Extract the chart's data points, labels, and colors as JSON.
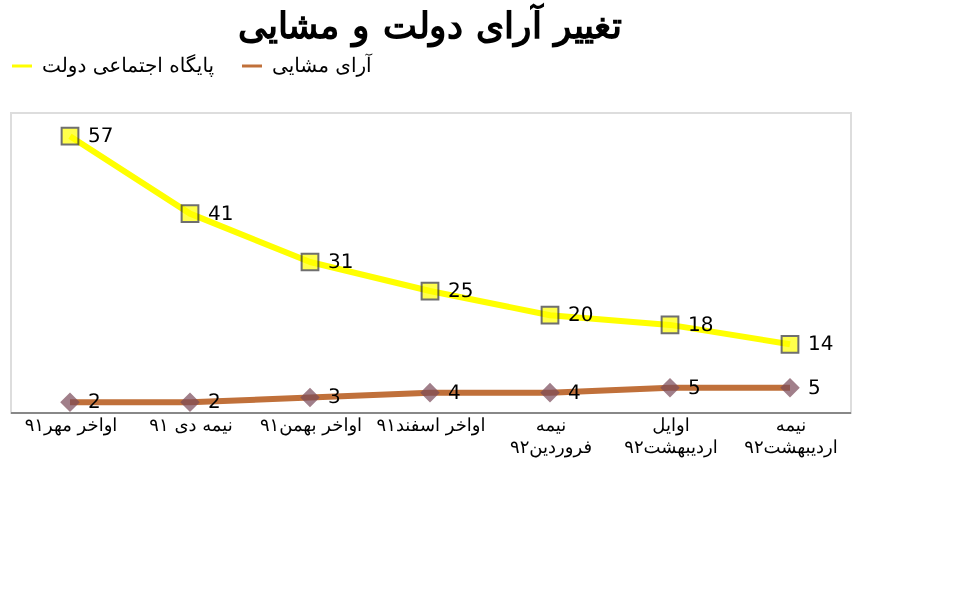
{
  "chart_data": {
    "type": "line",
    "title": "تغییر آرای دولت و مشایی",
    "categories": [
      "اواخر مهر۹۱",
      "نیمه دی ۹۱",
      "اواخر بهمن۹۱",
      "اواخر اسفند۹۱",
      "نیمه فروردین۹۲",
      "اوایل اردیبهشت۹۲",
      "نیمه اردیبهشت۹۲"
    ],
    "series": [
      {
        "name": "پایگاه اجتماعی دولت",
        "color": "#ffff00",
        "marker": "square",
        "values": [
          57,
          41,
          31,
          25,
          20,
          18,
          14
        ]
      },
      {
        "name": "آرای مشایی",
        "color": "#c0703a",
        "marker": "diamond",
        "values": [
          2,
          2,
          3,
          4,
          4,
          5,
          5
        ]
      }
    ],
    "ylim": [
      0,
      62
    ],
    "tick_labels": "x",
    "data_labels": true,
    "legend": "top",
    "grid": false
  }
}
